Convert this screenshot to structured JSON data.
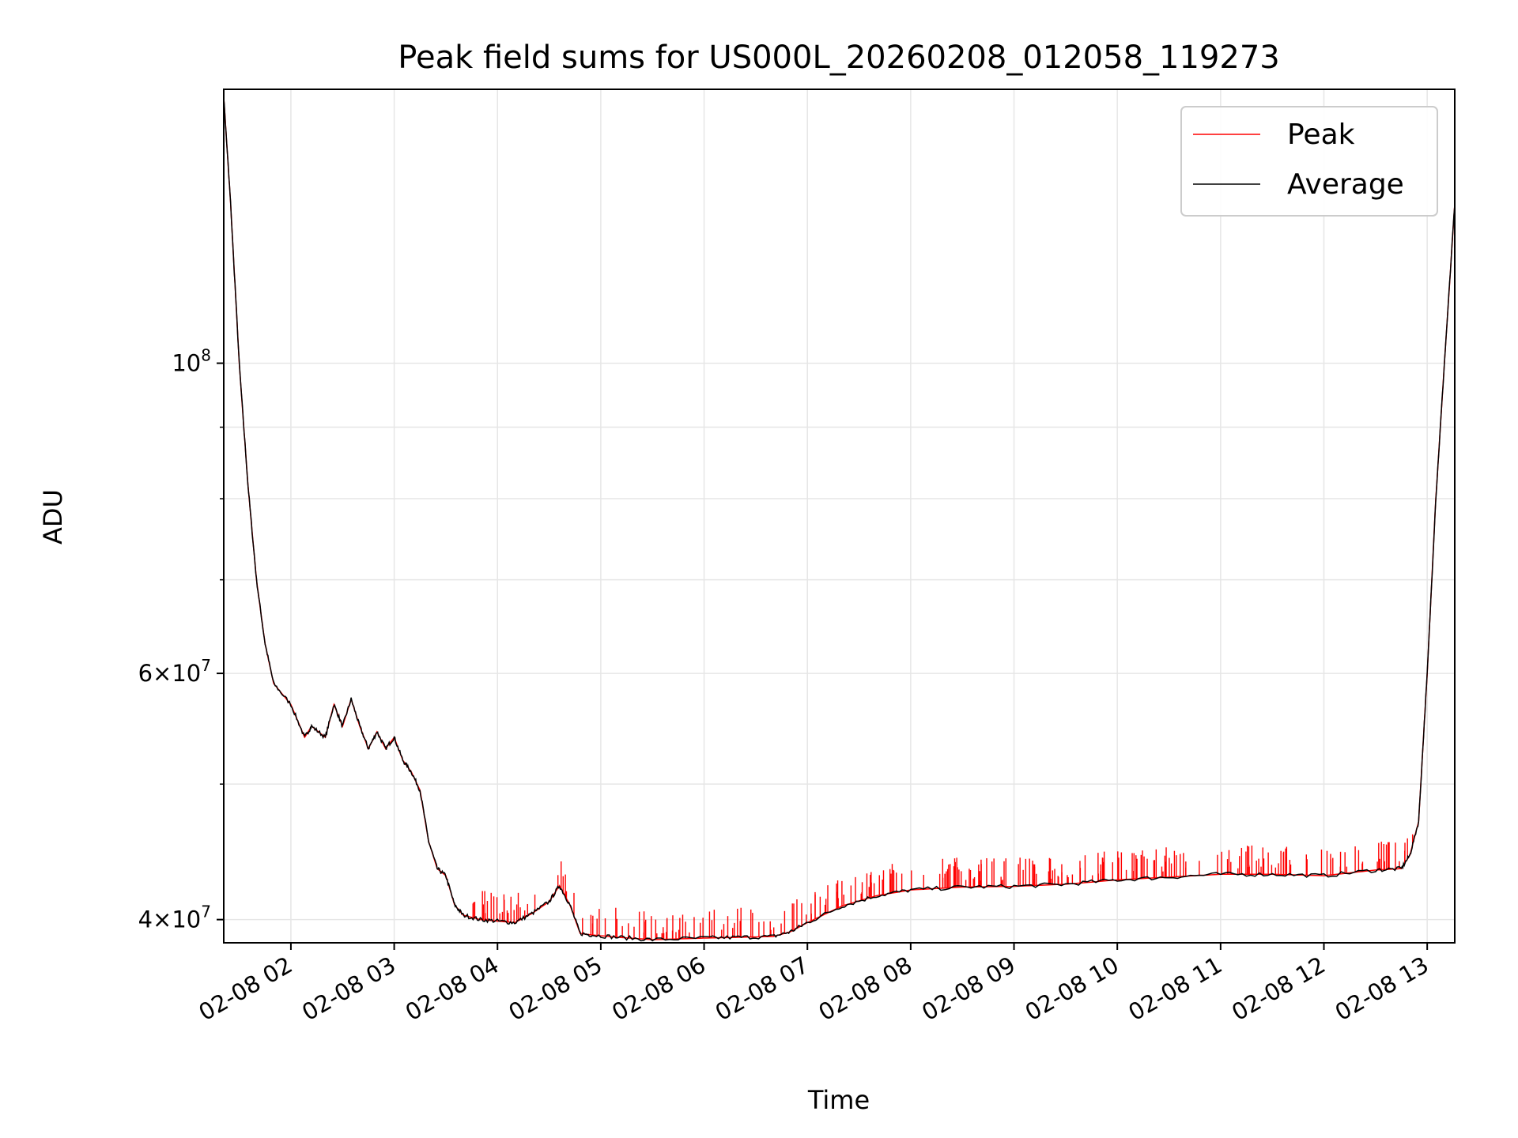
{
  "chart_data": {
    "type": "line",
    "title": "Peak field sums for US000L_20260208_012058_119273",
    "xlabel": "Time",
    "ylabel": "ADU",
    "y_scale": "log",
    "xlim": [
      "2026-02-08 01:21",
      "2026-02-08 13:16"
    ],
    "ylim": [
      38500000,
      157000000
    ],
    "x_ticks": [
      "02-08 02",
      "02-08 03",
      "02-08 04",
      "02-08 05",
      "02-08 06",
      "02-08 07",
      "02-08 08",
      "02-08 09",
      "02-08 10",
      "02-08 11",
      "02-08 12",
      "02-08 13"
    ],
    "y_ticks": [
      {
        "value": 40000000,
        "mantissa": "4",
        "exponent": "7"
      },
      {
        "value": 60000000,
        "mantissa": "6",
        "exponent": "7"
      },
      {
        "value": 100000000,
        "mantissa": "",
        "exponent": "8"
      }
    ],
    "legend_position": "upper-right",
    "grid": true,
    "series": [
      {
        "name": "Peak",
        "color": "#ff0000",
        "x": [
          "01:21",
          "01:25",
          "01:30",
          "01:35",
          "01:40",
          "01:45",
          "01:50",
          "02:00",
          "02:08",
          "02:12",
          "02:20",
          "02:25",
          "02:30",
          "02:35",
          "02:40",
          "02:45",
          "02:50",
          "02:55",
          "03:00",
          "03:05",
          "03:10",
          "03:15",
          "03:20",
          "03:25",
          "03:30",
          "03:35",
          "03:40",
          "03:50",
          "04:00",
          "04:10",
          "04:20",
          "04:30",
          "04:36",
          "04:42",
          "04:48",
          "04:55",
          "05:10",
          "05:30",
          "06:00",
          "06:20",
          "06:40",
          "06:50",
          "07:00",
          "07:20",
          "07:40",
          "08:00",
          "08:30",
          "09:00",
          "09:30",
          "10:00",
          "10:30",
          "11:00",
          "11:30",
          "12:00",
          "12:30",
          "12:45",
          "12:50",
          "12:55",
          "13:00",
          "13:05",
          "13:10",
          "13:16"
        ],
        "values": [
          155000000,
          130000000,
          100000000,
          82000000,
          70000000,
          63000000,
          59000000,
          57000000,
          54000000,
          55000000,
          54000000,
          57000000,
          55000000,
          57500000,
          55000000,
          53000000,
          54500000,
          53000000,
          54000000,
          52000000,
          51000000,
          49500000,
          45500000,
          43500000,
          43000000,
          41000000,
          40300000,
          40000000,
          39900000,
          39800000,
          40400000,
          41200000,
          42300000,
          41000000,
          39100000,
          39000000,
          38850000,
          38700000,
          38800000,
          38850000,
          38900000,
          39200000,
          39800000,
          40900000,
          41600000,
          42000000,
          42200000,
          42250000,
          42400000,
          42700000,
          42900000,
          43100000,
          43100000,
          43000000,
          43400000,
          43500000,
          44500000,
          47000000,
          60000000,
          80000000,
          100000000,
          130000000
        ],
        "spikes": {
          "count": 300,
          "max_height_fraction": 0.035
        }
      },
      {
        "name": "Average",
        "color": "#000000",
        "x": [
          "01:21",
          "01:25",
          "01:30",
          "01:35",
          "01:40",
          "01:45",
          "01:50",
          "02:00",
          "02:08",
          "02:12",
          "02:20",
          "02:25",
          "02:30",
          "02:35",
          "02:40",
          "02:45",
          "02:50",
          "02:55",
          "03:00",
          "03:05",
          "03:10",
          "03:15",
          "03:20",
          "03:25",
          "03:30",
          "03:35",
          "03:40",
          "03:50",
          "04:00",
          "04:10",
          "04:20",
          "04:30",
          "04:36",
          "04:42",
          "04:48",
          "04:55",
          "05:10",
          "05:30",
          "06:00",
          "06:20",
          "06:40",
          "06:50",
          "07:00",
          "07:20",
          "07:40",
          "08:00",
          "08:30",
          "09:00",
          "09:30",
          "10:00",
          "10:30",
          "11:00",
          "11:30",
          "12:00",
          "12:30",
          "12:45",
          "12:50",
          "12:55",
          "13:00",
          "13:05",
          "13:10",
          "13:16"
        ],
        "values": [
          155000000,
          130000000,
          100000000,
          82000000,
          70000000,
          63000000,
          59000000,
          57000000,
          54000000,
          55000000,
          54000000,
          57000000,
          55000000,
          57500000,
          55000000,
          53000000,
          54500000,
          53000000,
          54000000,
          52000000,
          51000000,
          49500000,
          45500000,
          43500000,
          43000000,
          41000000,
          40300000,
          40000000,
          39900000,
          39800000,
          40400000,
          41200000,
          42300000,
          41000000,
          39100000,
          39000000,
          38850000,
          38700000,
          38800000,
          38850000,
          38900000,
          39200000,
          39800000,
          40900000,
          41600000,
          42000000,
          42200000,
          42250000,
          42400000,
          42700000,
          42900000,
          43100000,
          43100000,
          43000000,
          43400000,
          43500000,
          44500000,
          47000000,
          60000000,
          80000000,
          100000000,
          130000000
        ]
      }
    ]
  }
}
